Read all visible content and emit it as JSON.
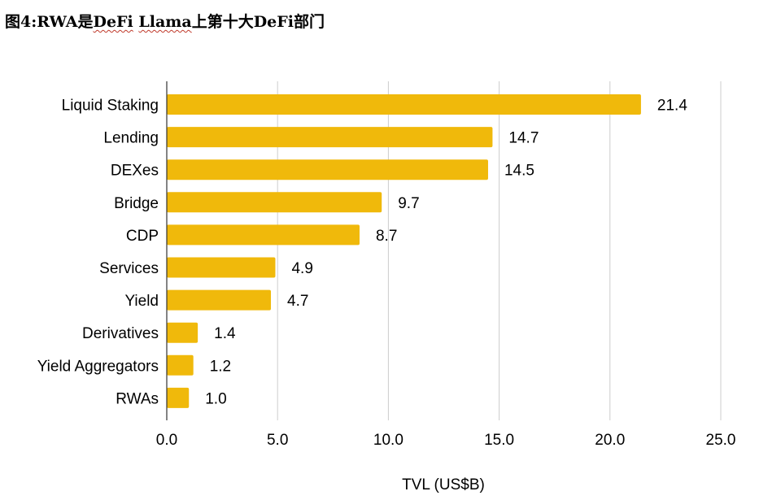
{
  "title": {
    "prefix": "图4:RWA是",
    "defi": "DeFi",
    "middle": " ",
    "llama": "Llama",
    "suffix": "上第十大DeFi部门"
  },
  "chart_data": {
    "type": "bar",
    "orientation": "horizontal",
    "categories": [
      "Liquid Staking",
      "Lending",
      "DEXes",
      "Bridge",
      "CDP",
      "Services",
      "Yield",
      "Derivatives",
      "Yield Aggregators",
      "RWAs"
    ],
    "values": [
      21.4,
      14.7,
      14.5,
      9.7,
      8.7,
      4.9,
      4.7,
      1.4,
      1.2,
      1.0
    ],
    "value_labels": [
      "21.4",
      "14.7",
      "14.5",
      "9.7",
      "8.7",
      "4.9",
      "4.7",
      "1.4",
      "1.2",
      "1.0"
    ],
    "xlabel": "TVL (US$B)",
    "ylabel": "",
    "xlim": [
      0,
      25
    ],
    "xticks": [
      0,
      5,
      10,
      15,
      20,
      25
    ],
    "xtick_labels": [
      "0.0",
      "5.0",
      "10.0",
      "15.0",
      "20.0",
      "25.0"
    ],
    "grid": "vertical",
    "legend": "none",
    "bar_color": "#F0B90B",
    "grid_color": "#CCCCCC",
    "axis_color": "#333333"
  }
}
